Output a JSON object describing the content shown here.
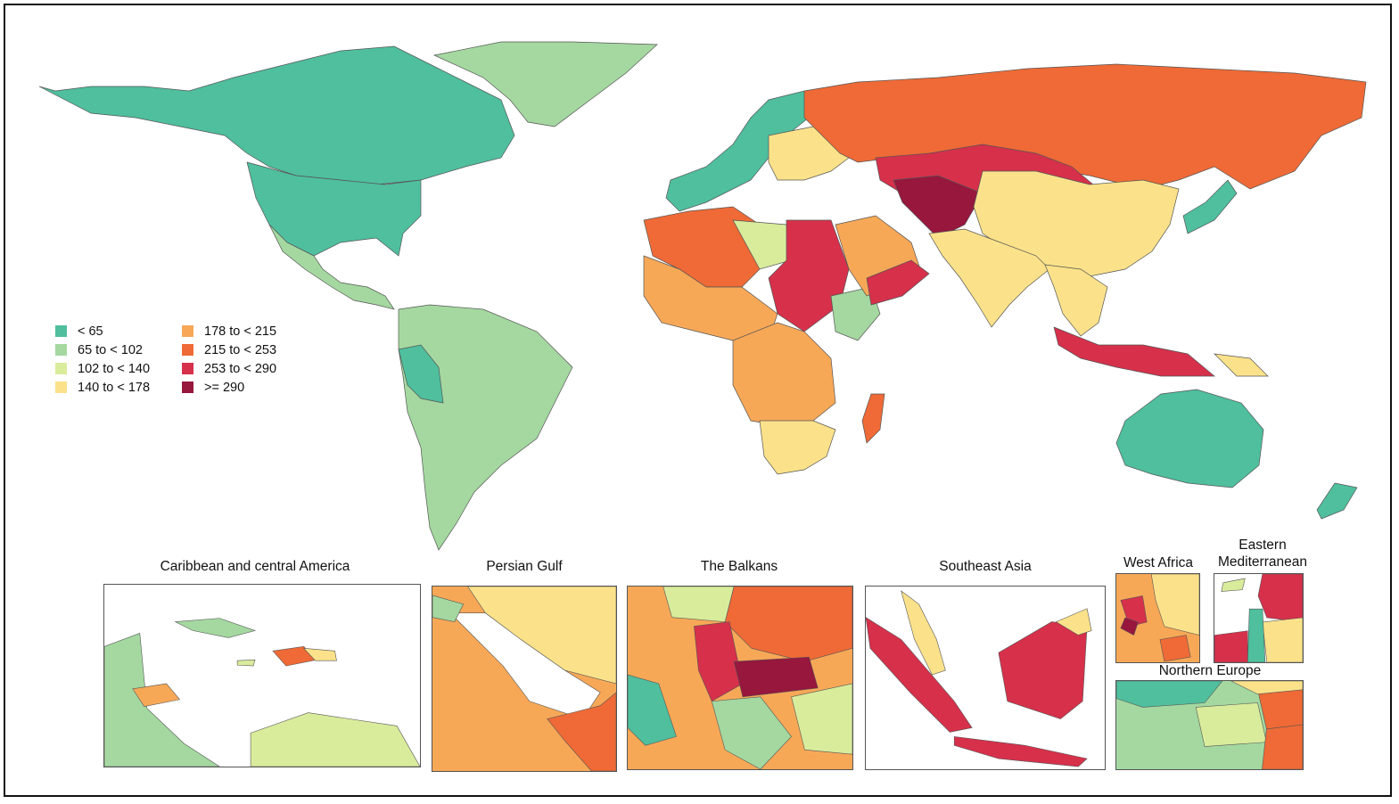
{
  "legend": {
    "items": [
      {
        "label": "< 65",
        "color": "#4fbf9e"
      },
      {
        "label": "65 to < 102",
        "color": "#a4d8a0"
      },
      {
        "label": "102 to < 140",
        "color": "#d9ec9c"
      },
      {
        "label": "140 to < 178",
        "color": "#fbe28a"
      },
      {
        "label": "178 to < 215",
        "color": "#f7a857"
      },
      {
        "label": "215 to < 253",
        "color": "#ef6a36"
      },
      {
        "label": "253 to < 290",
        "color": "#d6304b"
      },
      {
        "label": ">= 290",
        "color": "#97173d"
      }
    ]
  },
  "insets": {
    "caribbean": {
      "title": "Caribbean and central America"
    },
    "persian_gulf": {
      "title": "Persian Gulf"
    },
    "balkans": {
      "title": "The Balkans"
    },
    "southeast_asia": {
      "title": "Southeast Asia"
    },
    "west_africa": {
      "title": "West Africa"
    },
    "eastern_med": {
      "title": "Eastern Mediterranean"
    },
    "northern_europe": {
      "title": "Northern Europe"
    }
  },
  "regions": {
    "canada": "< 65",
    "usa": "< 65",
    "greenland": "65 to < 102",
    "mexico": "65 to < 102",
    "south_america": "65 to < 102",
    "peru": "< 65",
    "western_europe": "< 65",
    "eastern_europe": "140 to < 178",
    "russia": "215 to < 253",
    "central_asia": "253 to < 290",
    "afghanistan": ">= 290",
    "china": "140 to < 178",
    "india": "140 to < 178",
    "north_africa": "215 to < 253",
    "egypt_sudan": "253 to < 290",
    "libya": "102 to < 140",
    "sahel": "178 to < 215",
    "central_africa": "178 to < 215",
    "ethiopia": "65 to < 102",
    "southern_africa": "140 to < 178",
    "madagascar": "215 to < 253",
    "arabia": "178 to < 215",
    "yemen_oman": "253 to < 290",
    "indonesia": "253 to < 290",
    "papua": "140 to < 178",
    "australia": "< 65",
    "new_zealand": "< 65",
    "japan": "< 65",
    "southeast_mainland": "140 to < 178"
  }
}
